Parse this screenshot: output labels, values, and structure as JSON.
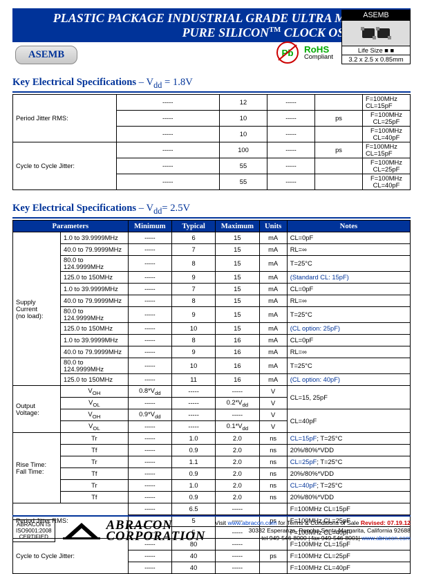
{
  "header": {
    "title_l1": "PLASTIC PACKAGE INDUSTRIAL GRADE ULTRA MINIATURE",
    "title_l2_pre": "PURE SILICON",
    "title_l2_tm": "TM",
    "title_l2_post": " CLOCK OSCILLATOR",
    "part": "ASEMB",
    "rohs_b": "RoHS",
    "rohs_s": "Compliant",
    "pb": "Pb",
    "pkg_label": "ASEMB",
    "life_size": "Life Size ■ ■",
    "dim": "3.2 x 2.5 x 0.85mm"
  },
  "sec1": {
    "title_b": "Key Electrical Specifications",
    "title_r": " – V",
    "title_sub": "dd",
    "title_v": " = 1.8V",
    "rows": [
      {
        "p": "Period Jitter RMS:",
        "m": "-----",
        "t": "12",
        "x": "-----",
        "u": "",
        "n": "F=100MHz CL=15pF"
      },
      {
        "p": "",
        "m": "-----",
        "t": "10",
        "x": "-----",
        "u": "ps",
        "n": "F=100MHz CL=25pF"
      },
      {
        "p": "",
        "m": "-----",
        "t": "10",
        "x": "-----",
        "u": "",
        "n": "F=100MHz CL=40pF"
      },
      {
        "p": "Cycle to Cycle Jitter:",
        "m": "-----",
        "t": "100",
        "x": "-----",
        "u": "ps",
        "n": "F=100MHz CL=15pF"
      },
      {
        "p": "",
        "m": "-----",
        "t": "55",
        "x": "-----",
        "u": "",
        "n": "F=100MHz CL=25pF"
      },
      {
        "p": "",
        "m": "-----",
        "t": "55",
        "x": "-----",
        "u": "",
        "n": "F=100MHz CL=40pF"
      }
    ]
  },
  "sec2": {
    "title_b": "Key Electrical Specifications",
    "title_r": " – V",
    "title_sub": "dd",
    "title_v": "= 2.5V",
    "h": [
      "Parameters",
      "Minimum",
      "Typical",
      "Maximum",
      "Units",
      "Notes"
    ],
    "supply_label": "Supply Current\n(no load):",
    "supply": [
      [
        "1.0 to 39.9999MHz",
        "-----",
        "6",
        "15",
        "mA",
        "CL=0pF",
        ""
      ],
      [
        "40.0 to 79.9999MHz",
        "-----",
        "7",
        "15",
        "mA",
        "RL=∞",
        ""
      ],
      [
        "80.0 to 124.9999MHz",
        "-----",
        "8",
        "15",
        "mA",
        "T=25°C",
        ""
      ],
      [
        "125.0 to 150MHz",
        "-----",
        "9",
        "15",
        "mA",
        "(Standard CL: 15pF)",
        "blue"
      ],
      [
        "1.0 to 39.9999MHz",
        "-----",
        "7",
        "15",
        "mA",
        "CL=0pF",
        ""
      ],
      [
        "40.0 to 79.9999MHz",
        "-----",
        "8",
        "15",
        "mA",
        "RL=∞",
        ""
      ],
      [
        "80.0 to 124.9999MHz",
        "-----",
        "9",
        "15",
        "mA",
        "T=25°C",
        ""
      ],
      [
        "125.0 to 150MHz",
        "-----",
        "10",
        "15",
        "mA",
        "(CL option: 25pF)",
        "blue"
      ],
      [
        "1.0 to 39.9999MHz",
        "-----",
        "8",
        "16",
        "mA",
        "CL=0pF",
        ""
      ],
      [
        "40.0 to 79.9999MHz",
        "-----",
        "9",
        "16",
        "mA",
        "RL=∞",
        ""
      ],
      [
        "80.0 to 124.9999MHz",
        "-----",
        "10",
        "16",
        "mA",
        "T=25°C",
        ""
      ],
      [
        "125.0 to 150MHz",
        "-----",
        "11",
        "16",
        "mA",
        "(CL option: 40pF)",
        "blue"
      ]
    ],
    "ov_label": "Output Voltage:",
    "ov": [
      [
        "V<sub>OH</sub>",
        "0.8*V<sub>dd</sub>",
        "-----",
        "-----",
        "V",
        "",
        ""
      ],
      [
        "V<sub>OL</sub>",
        "-----",
        "-----",
        "0.2*V<sub>dd</sub>",
        "V",
        "CL=15, 25pF",
        ""
      ],
      [
        "V<sub>OH</sub>",
        "0.9*V<sub>dd</sub>",
        "-----",
        "-----",
        "V",
        "",
        ""
      ],
      [
        "V<sub>OL</sub>",
        "-----",
        "-----",
        "0.1*V<sub>dd</sub>",
        "V",
        "CL=40pF",
        ""
      ]
    ],
    "rt_label": "Rise Time:\nFall Time:",
    "rt": [
      [
        "Tr",
        "-----",
        "1.0",
        "2.0",
        "ns",
        "CL=15pF",
        "; T=25°C"
      ],
      [
        "Tf",
        "-----",
        "0.9",
        "2.0",
        "ns",
        "",
        "20%/80%*VDD"
      ],
      [
        "Tr",
        "-----",
        "1.1",
        "2.0",
        "ns",
        "CL=25pF",
        "; T=25°C"
      ],
      [
        "Tf",
        "-----",
        "0.9",
        "2.0",
        "ns",
        "",
        "20%/80%*VDD"
      ],
      [
        "Tr",
        "-----",
        "1.0",
        "2.0",
        "ns",
        "CL=40pF",
        "; T=25°C"
      ],
      [
        "Tf",
        "-----",
        "0.9",
        "2.0",
        "ns",
        "",
        "20%/80%*VDD"
      ]
    ],
    "pj_label": "Period Jitter RMS:",
    "pj": [
      [
        "-----",
        "6.5",
        "-----",
        "",
        "F=100MHz CL=15pF"
      ],
      [
        "-----",
        "5",
        "-----",
        "ps",
        "F=100MHz CL=25pF"
      ],
      [
        "-----",
        "5",
        "-----",
        "",
        "F=100MHz CL=40pF"
      ]
    ],
    "cc_label": "Cycle to Cycle Jitter:",
    "cc": [
      [
        "-----",
        "80",
        "-----",
        "",
        "F=100MHz CL=15pF"
      ],
      [
        "-----",
        "40",
        "-----",
        "ps",
        "F=100MHz CL=25pF"
      ],
      [
        "-----",
        "40",
        "-----",
        "",
        "F=100MHz CL=40pF"
      ]
    ]
  },
  "footer": {
    "cert1": "ABRACON IS",
    "cert2": "ISO9001:2008",
    "cert3": "CERTIFIED",
    "co1": "ABRACON",
    "co2": "CORPORATION",
    "l1a": "Visit ",
    "l1b": "www.abracon.com",
    "l1c": " for Terms & Conditions of Sale ",
    "rev": "Revised: 07.19.12",
    "l2": "30332 Esperanza, Rancho Santa Margarita, California 92688",
    "l3a": "tel 949-546-8000 |  fax 949-546-8001|  ",
    "l3b": "www.abracon.com"
  }
}
